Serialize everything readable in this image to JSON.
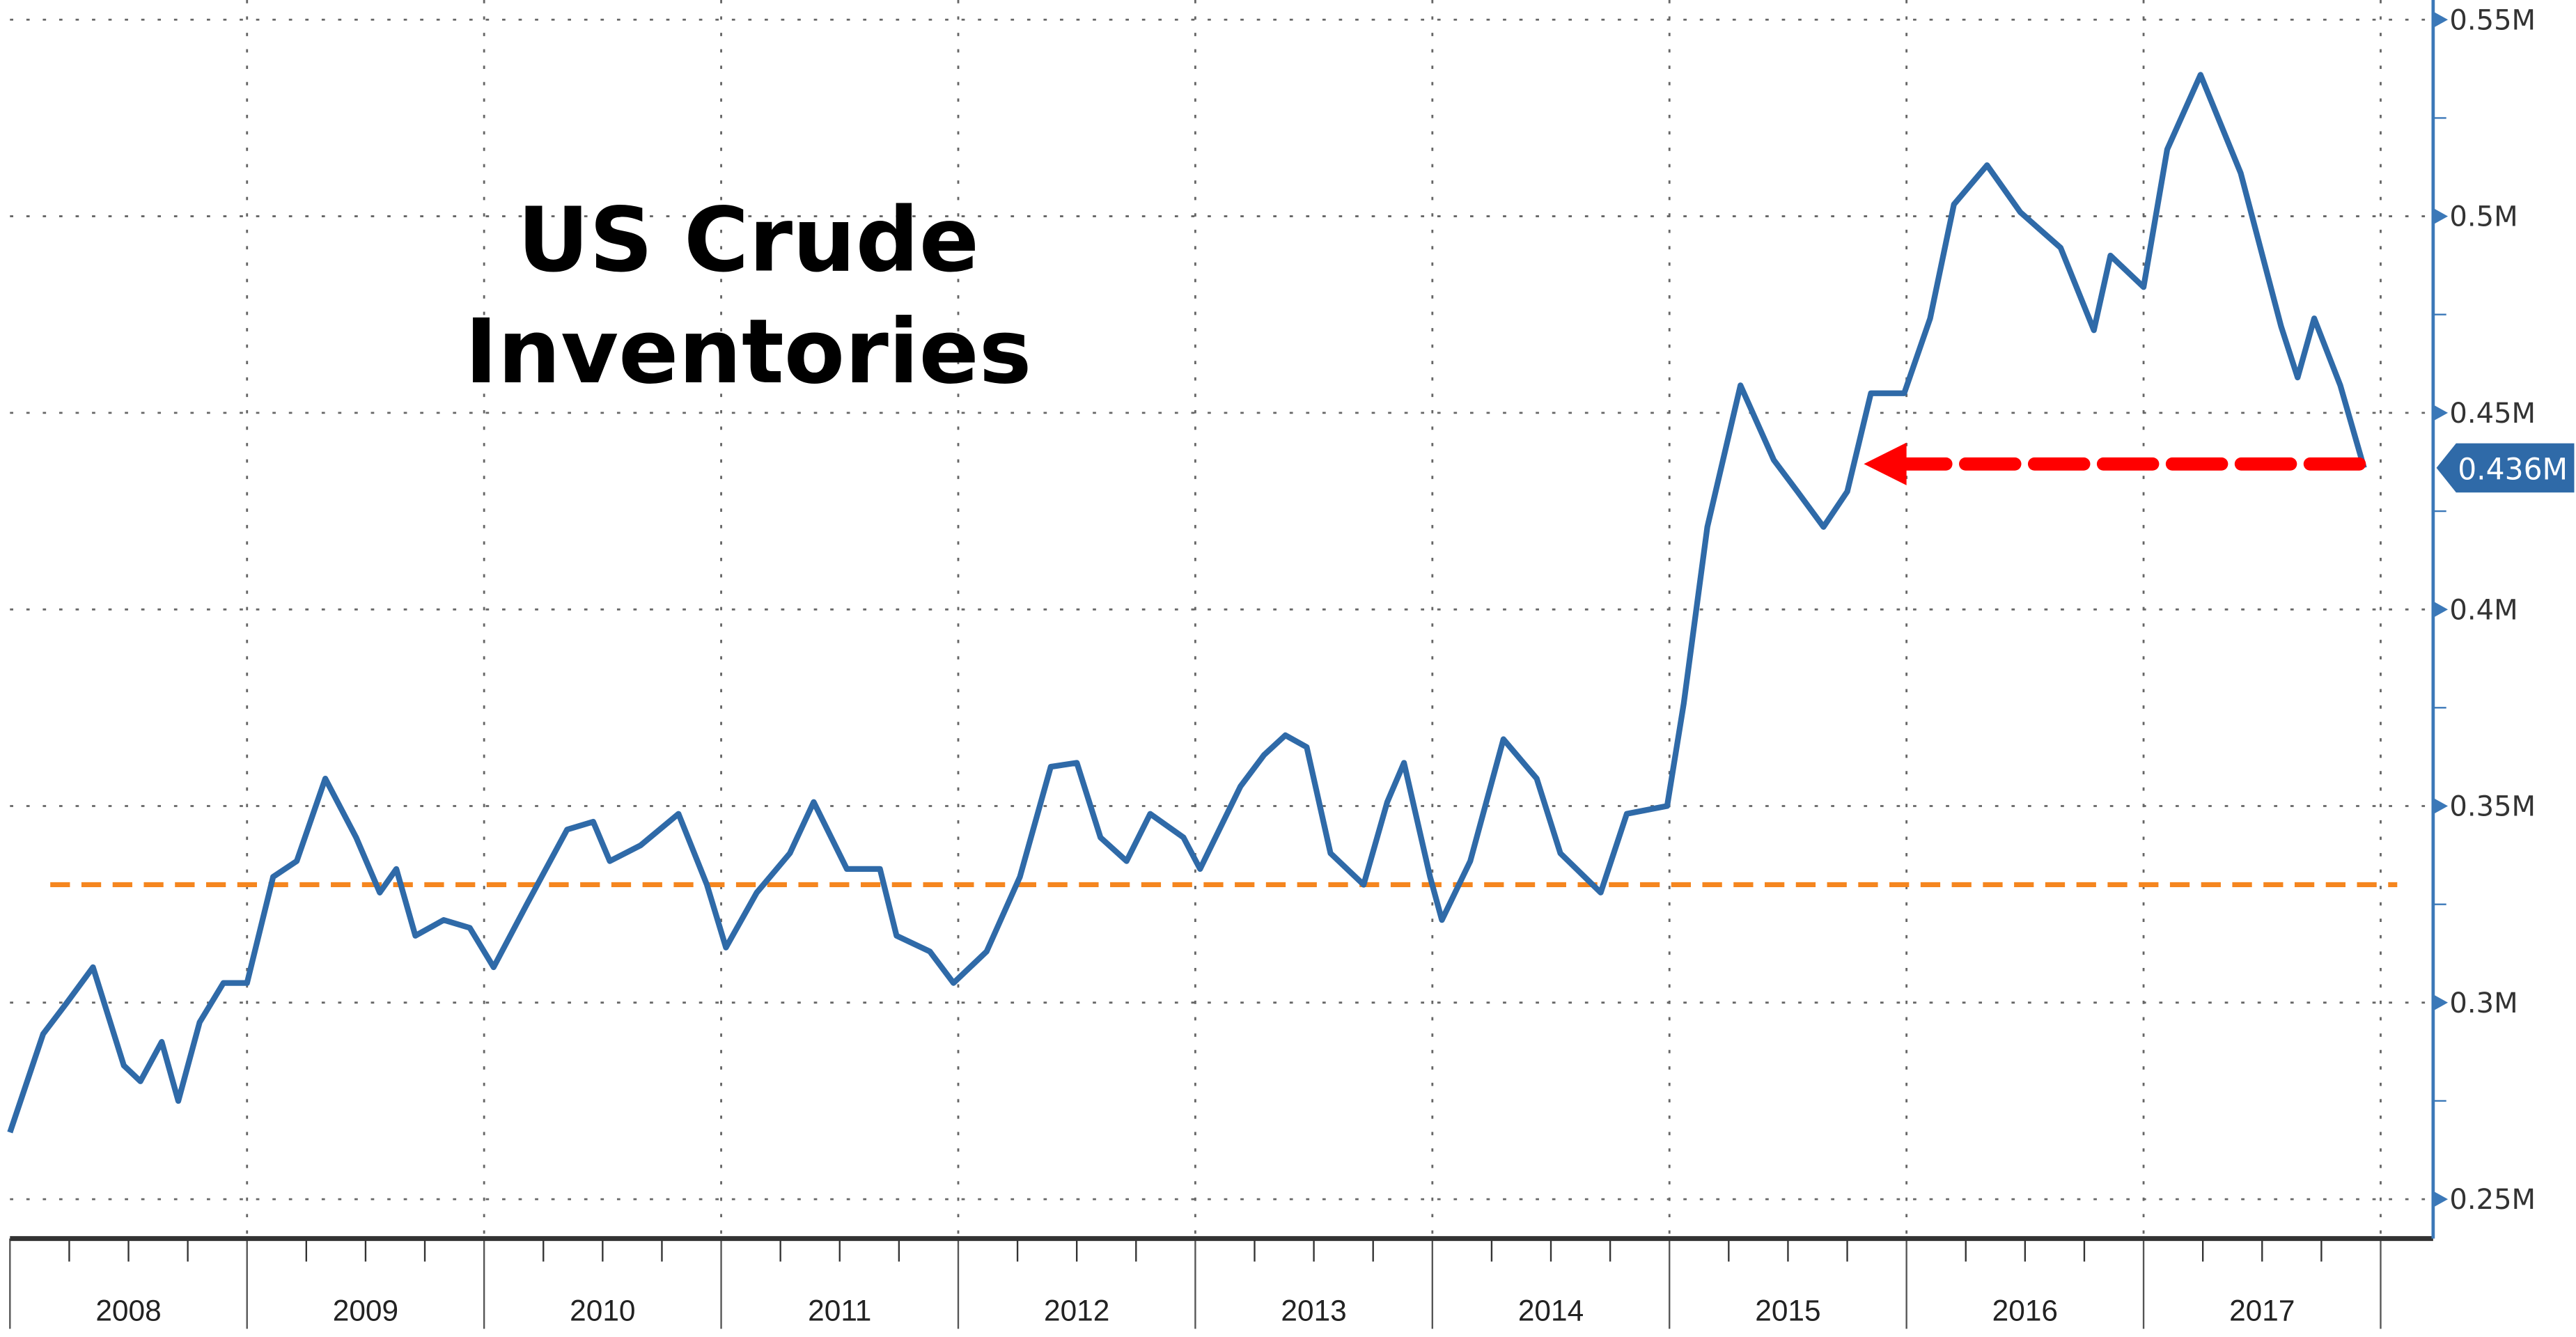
{
  "chart_data": {
    "type": "line",
    "title": [
      "US Crude",
      "Inventories"
    ],
    "xlabel": "",
    "ylabel": "",
    "xlim": [
      2008,
      2018.2
    ],
    "ylim": [
      0.24,
      0.555
    ],
    "grid": true,
    "x_tick_labels": [
      "2008",
      "2009",
      "2010",
      "2011",
      "2012",
      "2013",
      "2014",
      "2015",
      "2016",
      "2017"
    ],
    "y_ticks": [
      0.25,
      0.3,
      0.35,
      0.4,
      0.45,
      0.5,
      0.55
    ],
    "y_tick_labels": [
      "0.25M",
      "0.3M",
      "0.35M",
      "0.4M",
      "0.45M",
      "0.5M",
      "0.55M"
    ],
    "colors": {
      "series": "#2f6aa8",
      "reference": "#f5861f",
      "arrow": "#ff0000",
      "axis": "#3b78b8"
    },
    "series": [
      {
        "x": [
          2008.0,
          2008.14,
          2008.24,
          2008.35,
          2008.48,
          2008.55,
          2008.64,
          2008.71,
          2008.8,
          2008.9,
          2009.0,
          2009.11,
          2009.21,
          2009.33,
          2009.46,
          2009.56,
          2009.63,
          2009.71,
          2009.83,
          2009.94,
          2010.04,
          2010.18,
          2010.35,
          2010.46,
          2010.53,
          2010.66,
          2010.82,
          2010.94,
          2011.02,
          2011.15,
          2011.29,
          2011.39,
          2011.53,
          2011.67,
          2011.74,
          2011.88,
          2011.98,
          2012.12,
          2012.26,
          2012.39,
          2012.5,
          2012.6,
          2012.71,
          2012.81,
          2012.95,
          2013.02,
          2013.19,
          2013.29,
          2013.38,
          2013.47,
          2013.57,
          2013.71,
          2013.81,
          2013.88,
          2013.99,
          2014.04,
          2014.16,
          2014.3,
          2014.44,
          2014.54,
          2014.71,
          2014.82,
          2014.99,
          2015.06,
          2015.16,
          2015.3,
          2015.44,
          2015.54,
          2015.65,
          2015.75,
          2015.85,
          2015.99,
          2016.1,
          2016.2,
          2016.34,
          2016.48,
          2016.65,
          2016.79,
          2016.86,
          2017.0,
          2017.1,
          2017.24,
          2017.41,
          2017.58,
          2017.65,
          2017.72,
          2017.83,
          2017.93
        ],
        "y": [
          0.267,
          0.292,
          0.3,
          0.309,
          0.284,
          0.28,
          0.29,
          0.275,
          0.295,
          0.305,
          0.305,
          0.332,
          0.336,
          0.357,
          0.342,
          0.328,
          0.334,
          0.317,
          0.321,
          0.319,
          0.309,
          0.325,
          0.344,
          0.346,
          0.336,
          0.34,
          0.348,
          0.33,
          0.314,
          0.328,
          0.338,
          0.351,
          0.334,
          0.334,
          0.317,
          0.313,
          0.305,
          0.313,
          0.332,
          0.36,
          0.361,
          0.342,
          0.336,
          0.348,
          0.342,
          0.334,
          0.355,
          0.363,
          0.368,
          0.365,
          0.338,
          0.33,
          0.351,
          0.361,
          0.332,
          0.321,
          0.336,
          0.367,
          0.357,
          0.338,
          0.328,
          0.348,
          0.35,
          0.376,
          0.421,
          0.457,
          0.438,
          0.43,
          0.421,
          0.43,
          0.455,
          0.455,
          0.474,
          0.503,
          0.513,
          0.501,
          0.492,
          0.471,
          0.49,
          0.482,
          0.517,
          0.536,
          0.511,
          0.472,
          0.459,
          0.474,
          0.457,
          0.436
        ]
      }
    ],
    "reference_line": {
      "value": 0.33,
      "x_range": [
        2008.17,
        2018.07
      ],
      "style": "dashed"
    },
    "arrow": {
      "value": 0.437,
      "from_x": 2017.91,
      "to_x": 2015.82
    },
    "last_value_label": "0.436M"
  }
}
